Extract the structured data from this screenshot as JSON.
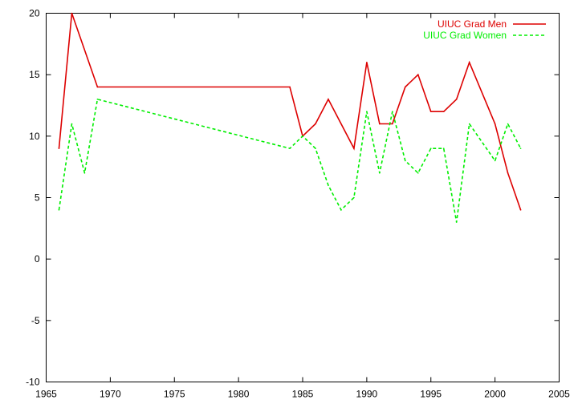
{
  "chart_data": {
    "type": "line",
    "title": "",
    "xlabel": "",
    "ylabel": "",
    "xlim": [
      1965,
      2005
    ],
    "ylim": [
      -10,
      20
    ],
    "x_ticks": [
      1965,
      1970,
      1975,
      1980,
      1985,
      1990,
      1995,
      2000,
      2005
    ],
    "y_ticks": [
      -10,
      -5,
      0,
      5,
      10,
      15,
      20
    ],
    "grid": false,
    "legend_position": "top-right",
    "series": [
      {
        "name": "UIUC Grad Men",
        "color": "#dd0000",
        "dash": "solid",
        "points": [
          [
            1966,
            9
          ],
          [
            1967,
            20
          ],
          [
            1969,
            14
          ],
          [
            1984,
            14
          ],
          [
            1985,
            10
          ],
          [
            1986,
            11
          ],
          [
            1987,
            13
          ],
          [
            1989,
            9
          ],
          [
            1990,
            16
          ],
          [
            1991,
            11
          ],
          [
            1992,
            11
          ],
          [
            1993,
            14
          ],
          [
            1994,
            15
          ],
          [
            1995,
            12
          ],
          [
            1996,
            12
          ],
          [
            1997,
            13
          ],
          [
            1998,
            16
          ],
          [
            2000,
            11
          ],
          [
            2001,
            7
          ],
          [
            2002,
            4
          ]
        ]
      },
      {
        "name": "UIUC Grad Women",
        "color": "#00ee00",
        "dash": "dashed",
        "points": [
          [
            1966,
            4
          ],
          [
            1967,
            11
          ],
          [
            1968,
            7
          ],
          [
            1969,
            13
          ],
          [
            1984,
            9
          ],
          [
            1985,
            10
          ],
          [
            1986,
            9
          ],
          [
            1987,
            6
          ],
          [
            1988,
            4
          ],
          [
            1989,
            5
          ],
          [
            1990,
            12
          ],
          [
            1991,
            7
          ],
          [
            1992,
            12
          ],
          [
            1993,
            8
          ],
          [
            1994,
            7
          ],
          [
            1995,
            9
          ],
          [
            1996,
            9
          ],
          [
            1997,
            3
          ],
          [
            1998,
            11
          ],
          [
            2000,
            8
          ],
          [
            2001,
            11
          ],
          [
            2002,
            9
          ]
        ]
      }
    ]
  }
}
